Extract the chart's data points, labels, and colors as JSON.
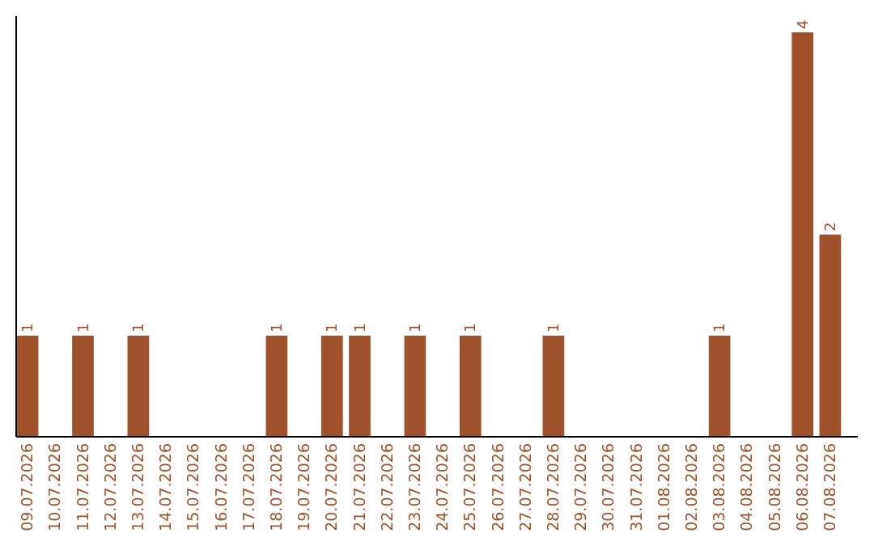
{
  "chart_data": {
    "type": "bar",
    "categories": [
      "09.07.2026",
      "10.07.2026",
      "11.07.2026",
      "12.07.2026",
      "13.07.2026",
      "14.07.2026",
      "15.07.2026",
      "16.07.2026",
      "17.07.2026",
      "18.07.2026",
      "19.07.2026",
      "20.07.2026",
      "21.07.2026",
      "22.07.2026",
      "23.07.2026",
      "24.07.2026",
      "25.07.2026",
      "26.07.2026",
      "27.07.2026",
      "28.07.2026",
      "29.07.2026",
      "30.07.2026",
      "31.07.2026",
      "01.08.2026",
      "02.08.2026",
      "03.08.2026",
      "04.08.2026",
      "05.08.2026",
      "06.08.2026",
      "07.08.2026"
    ],
    "values": [
      1,
      0,
      1,
      0,
      1,
      0,
      0,
      0,
      0,
      1,
      0,
      1,
      1,
      0,
      1,
      0,
      1,
      0,
      0,
      1,
      0,
      0,
      0,
      0,
      0,
      1,
      0,
      0,
      4,
      2
    ],
    "value_labels": [
      "1",
      null,
      "1",
      null,
      "1",
      null,
      null,
      null,
      null,
      "1",
      null,
      "1",
      "1",
      null,
      "1",
      null,
      "1",
      null,
      null,
      "1",
      null,
      null,
      null,
      null,
      null,
      "1",
      null,
      null,
      "4",
      "2"
    ],
    "color": "#a0522d",
    "ylim": [
      0,
      4.16
    ],
    "tick_labels": "x"
  }
}
